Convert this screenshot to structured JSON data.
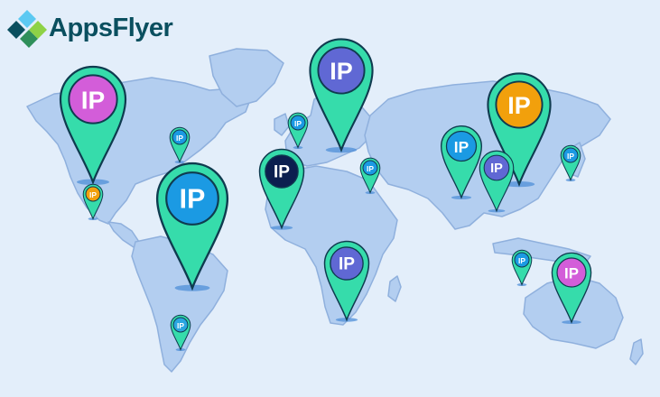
{
  "brand": {
    "name": "AppsFlyer",
    "mark_icon": "appsflyer-logo-icon"
  },
  "colors": {
    "background": "#e3eefa",
    "land": "#b3cef0",
    "land_stroke": "#8fb0dd",
    "pin": "#36dcab",
    "pin_stroke": "#0f3b4f",
    "ip_purple": "#d35dd9",
    "ip_indigo": "#6068d4",
    "ip_orange": "#f2a00c",
    "ip_blue": "#1b9ae3",
    "ip_navy": "#0c1f4f",
    "ip_light_blue": "#2aa6e0"
  },
  "pins": [
    {
      "id": "north-america-large",
      "label": "IP",
      "badge_color": "#d35dd9"
    },
    {
      "id": "canada-small",
      "label": "IP",
      "badge_color": "#1b9ae3"
    },
    {
      "id": "mexico-small",
      "label": "IP",
      "badge_color": "#f2a00c"
    },
    {
      "id": "south-america-large",
      "label": "IP",
      "badge_color": "#1b9ae3"
    },
    {
      "id": "argentina-small",
      "label": "IP",
      "badge_color": "#2aa6e0"
    },
    {
      "id": "europe-large",
      "label": "IP",
      "badge_color": "#6068d4"
    },
    {
      "id": "scandinavia-small",
      "label": "IP",
      "badge_color": "#1b9ae3"
    },
    {
      "id": "west-africa-medium",
      "label": "IP",
      "badge_color": "#0c1f4f"
    },
    {
      "id": "middle-east-small",
      "label": "IP",
      "badge_color": "#1b9ae3"
    },
    {
      "id": "south-africa-medium",
      "label": "IP",
      "badge_color": "#6068d4"
    },
    {
      "id": "india-medium",
      "label": "IP",
      "badge_color": "#1b9ae3"
    },
    {
      "id": "china-large",
      "label": "IP",
      "badge_color": "#f2a00c"
    },
    {
      "id": "southeast-asia-medium",
      "label": "IP",
      "badge_color": "#6068d4"
    },
    {
      "id": "japan-small",
      "label": "IP",
      "badge_color": "#1b9ae3"
    },
    {
      "id": "indonesia-small",
      "label": "IP",
      "badge_color": "#1b9ae3"
    },
    {
      "id": "australia-medium",
      "label": "IP",
      "badge_color": "#d35dd9"
    }
  ]
}
